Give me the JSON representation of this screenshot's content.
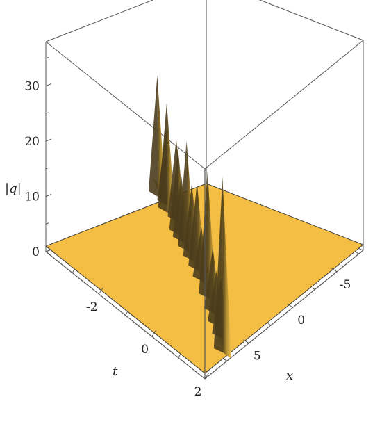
{
  "chart_data": {
    "type": "surface3d",
    "title": "",
    "xlabel": "x",
    "ylabel": "t",
    "zlabel": "|q|",
    "xlim": [
      -8,
      10
    ],
    "ylim": [
      -4,
      2
    ],
    "zlim": [
      0,
      38
    ],
    "x_ticks": [
      "-5",
      "0",
      "5"
    ],
    "y_ticks": [
      "-2",
      "0",
      "2"
    ],
    "z_ticks": [
      "0",
      "10",
      "20",
      "30"
    ],
    "surface_color": "#f4be45",
    "surface_shadow_color": "#4a3c1c",
    "base_level": 1,
    "peaks": [
      {
        "t": -4.0,
        "x": -2.5,
        "height": 24
      },
      {
        "t": -3.5,
        "x": -2.0,
        "height": 16
      },
      {
        "t": -3.2,
        "x": -1.2,
        "height": 22
      },
      {
        "t": -2.7,
        "x": -0.8,
        "height": 17
      },
      {
        "t": -2.2,
        "x": 0.5,
        "height": 18
      },
      {
        "t": -1.9,
        "x": 1.0,
        "height": 14
      },
      {
        "t": -1.5,
        "x": 1.6,
        "height": 22
      },
      {
        "t": -1.1,
        "x": 2.2,
        "height": 16
      },
      {
        "t": -0.7,
        "x": 2.8,
        "height": 18
      },
      {
        "t": -0.3,
        "x": 3.5,
        "height": 12
      },
      {
        "t": 0.3,
        "x": 4.6,
        "height": 25
      },
      {
        "t": 0.8,
        "x": 5.5,
        "height": 14
      },
      {
        "t": 1.2,
        "x": 6.3,
        "height": 12
      },
      {
        "t": 1.6,
        "x": 7.0,
        "height": 13
      },
      {
        "t": 2.0,
        "x": 8.0,
        "height": 34
      }
    ]
  }
}
